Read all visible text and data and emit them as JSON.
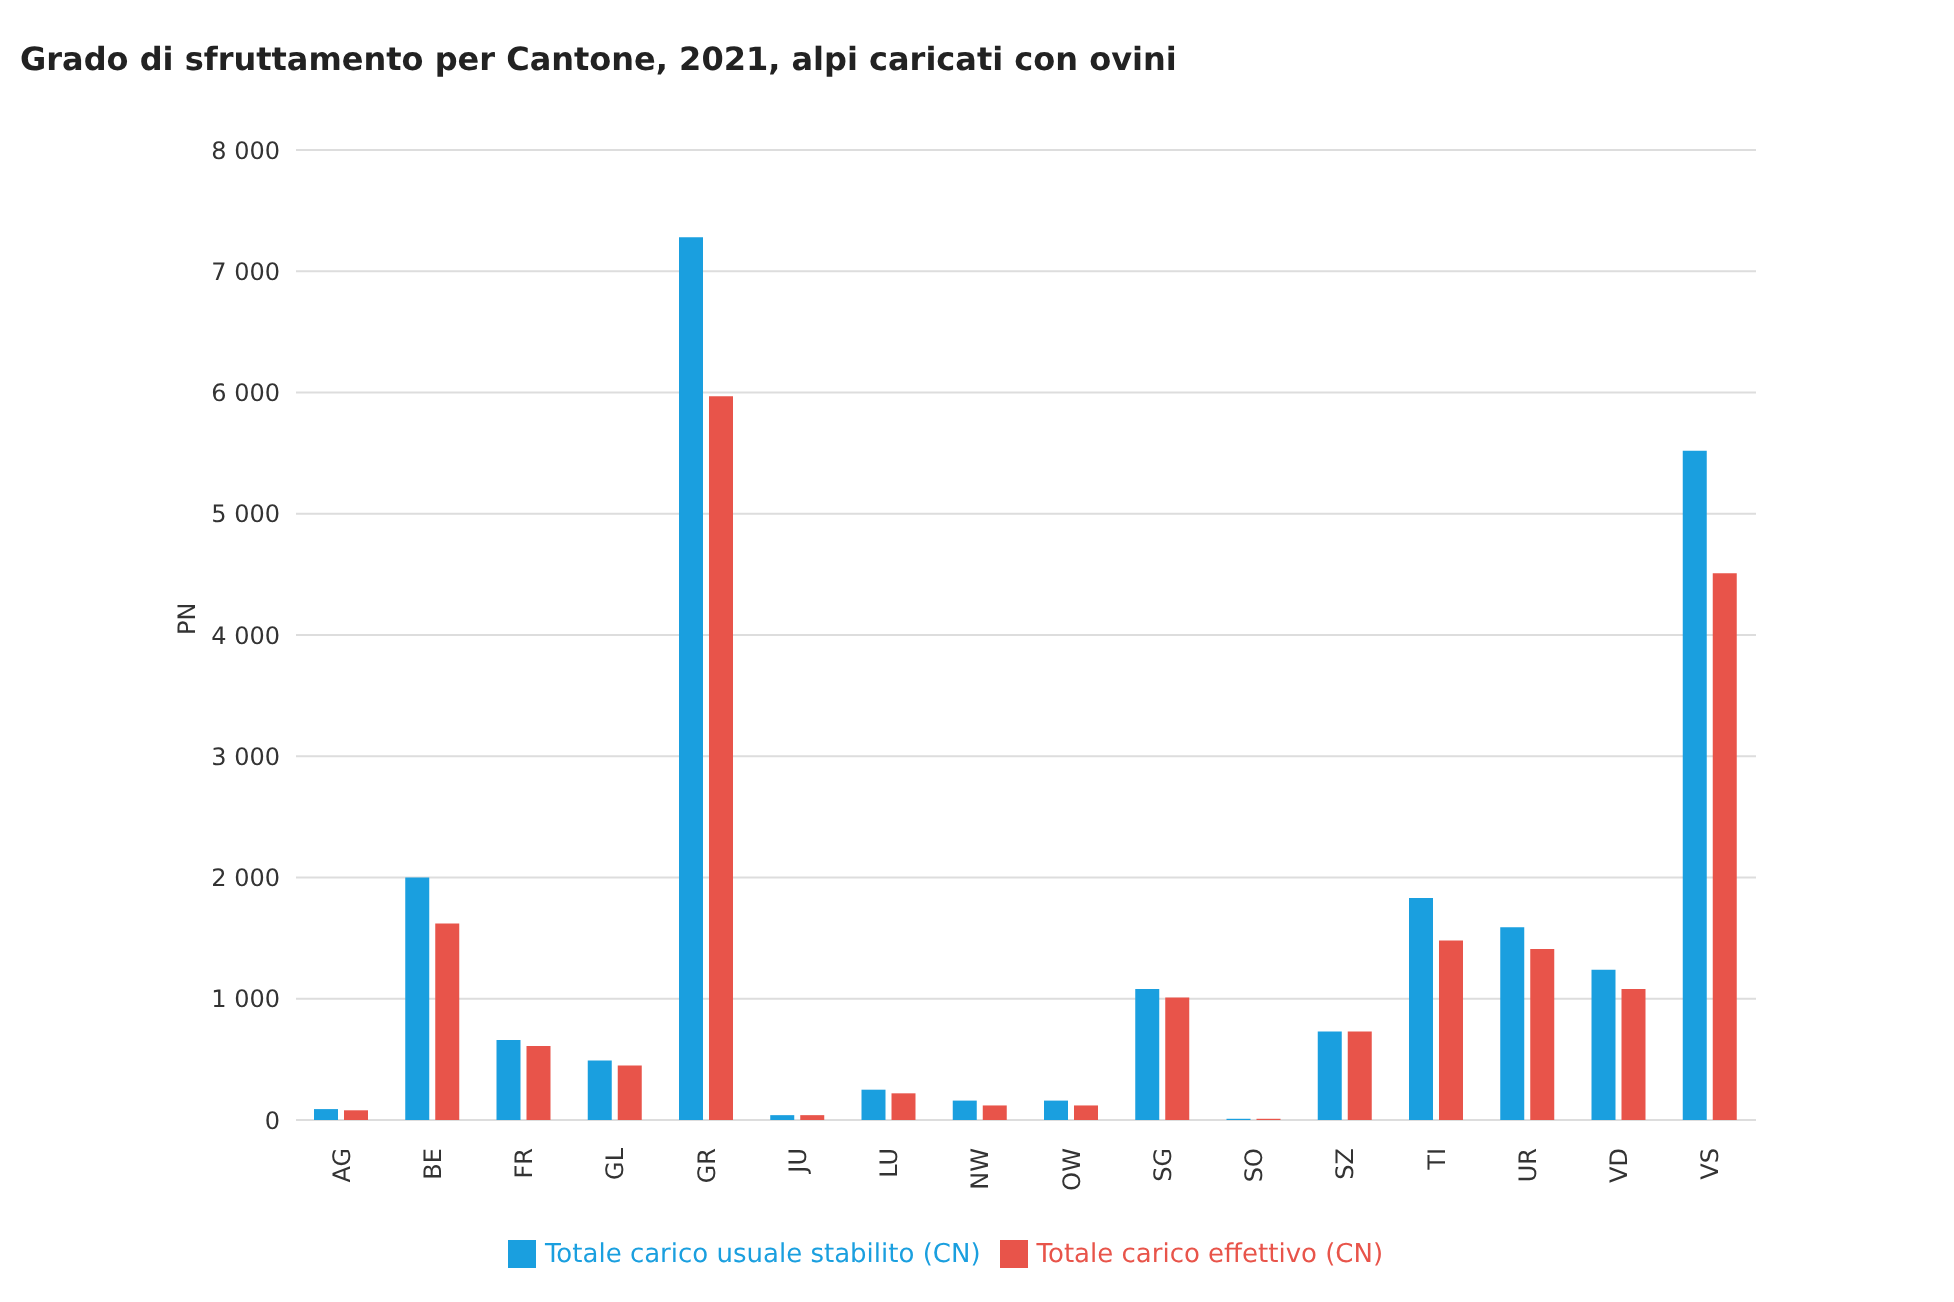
{
  "chart_data": {
    "type": "bar",
    "title": "Grado di sfruttamento per Cantone, 2021, alpi caricati con ovini",
    "ylabel": "PN",
    "categories": [
      "AG",
      "BE",
      "FR",
      "GL",
      "GR",
      "JU",
      "LU",
      "NW",
      "OW",
      "SG",
      "SO",
      "SZ",
      "TI",
      "UR",
      "VD",
      "VS"
    ],
    "series": [
      {
        "name": "Totale carico usuale stabilito (CN)",
        "color": "#1a9fdf",
        "values": [
          90,
          2000,
          660,
          490,
          7280,
          40,
          250,
          160,
          160,
          1080,
          10,
          730,
          1830,
          1590,
          1240,
          5520
        ]
      },
      {
        "name": "Totale carico effettivo (CN)",
        "color": "#e8544a",
        "values": [
          80,
          1620,
          610,
          450,
          5970,
          40,
          220,
          120,
          120,
          1010,
          10,
          730,
          1480,
          1410,
          1080,
          4510
        ]
      }
    ],
    "ylim": [
      0,
      8000
    ],
    "yticks": [
      {
        "value": 0,
        "label": "0"
      },
      {
        "value": 1000,
        "label": "1 000"
      },
      {
        "value": 2000,
        "label": "2 000"
      },
      {
        "value": 3000,
        "label": "3 000"
      },
      {
        "value": 4000,
        "label": "4 000"
      },
      {
        "value": 5000,
        "label": "5 000"
      },
      {
        "value": 6000,
        "label": "6 000"
      },
      {
        "value": 7000,
        "label": "7 000"
      },
      {
        "value": 8000,
        "label": "8 000"
      }
    ],
    "grid": "y",
    "legend": "bottom"
  }
}
